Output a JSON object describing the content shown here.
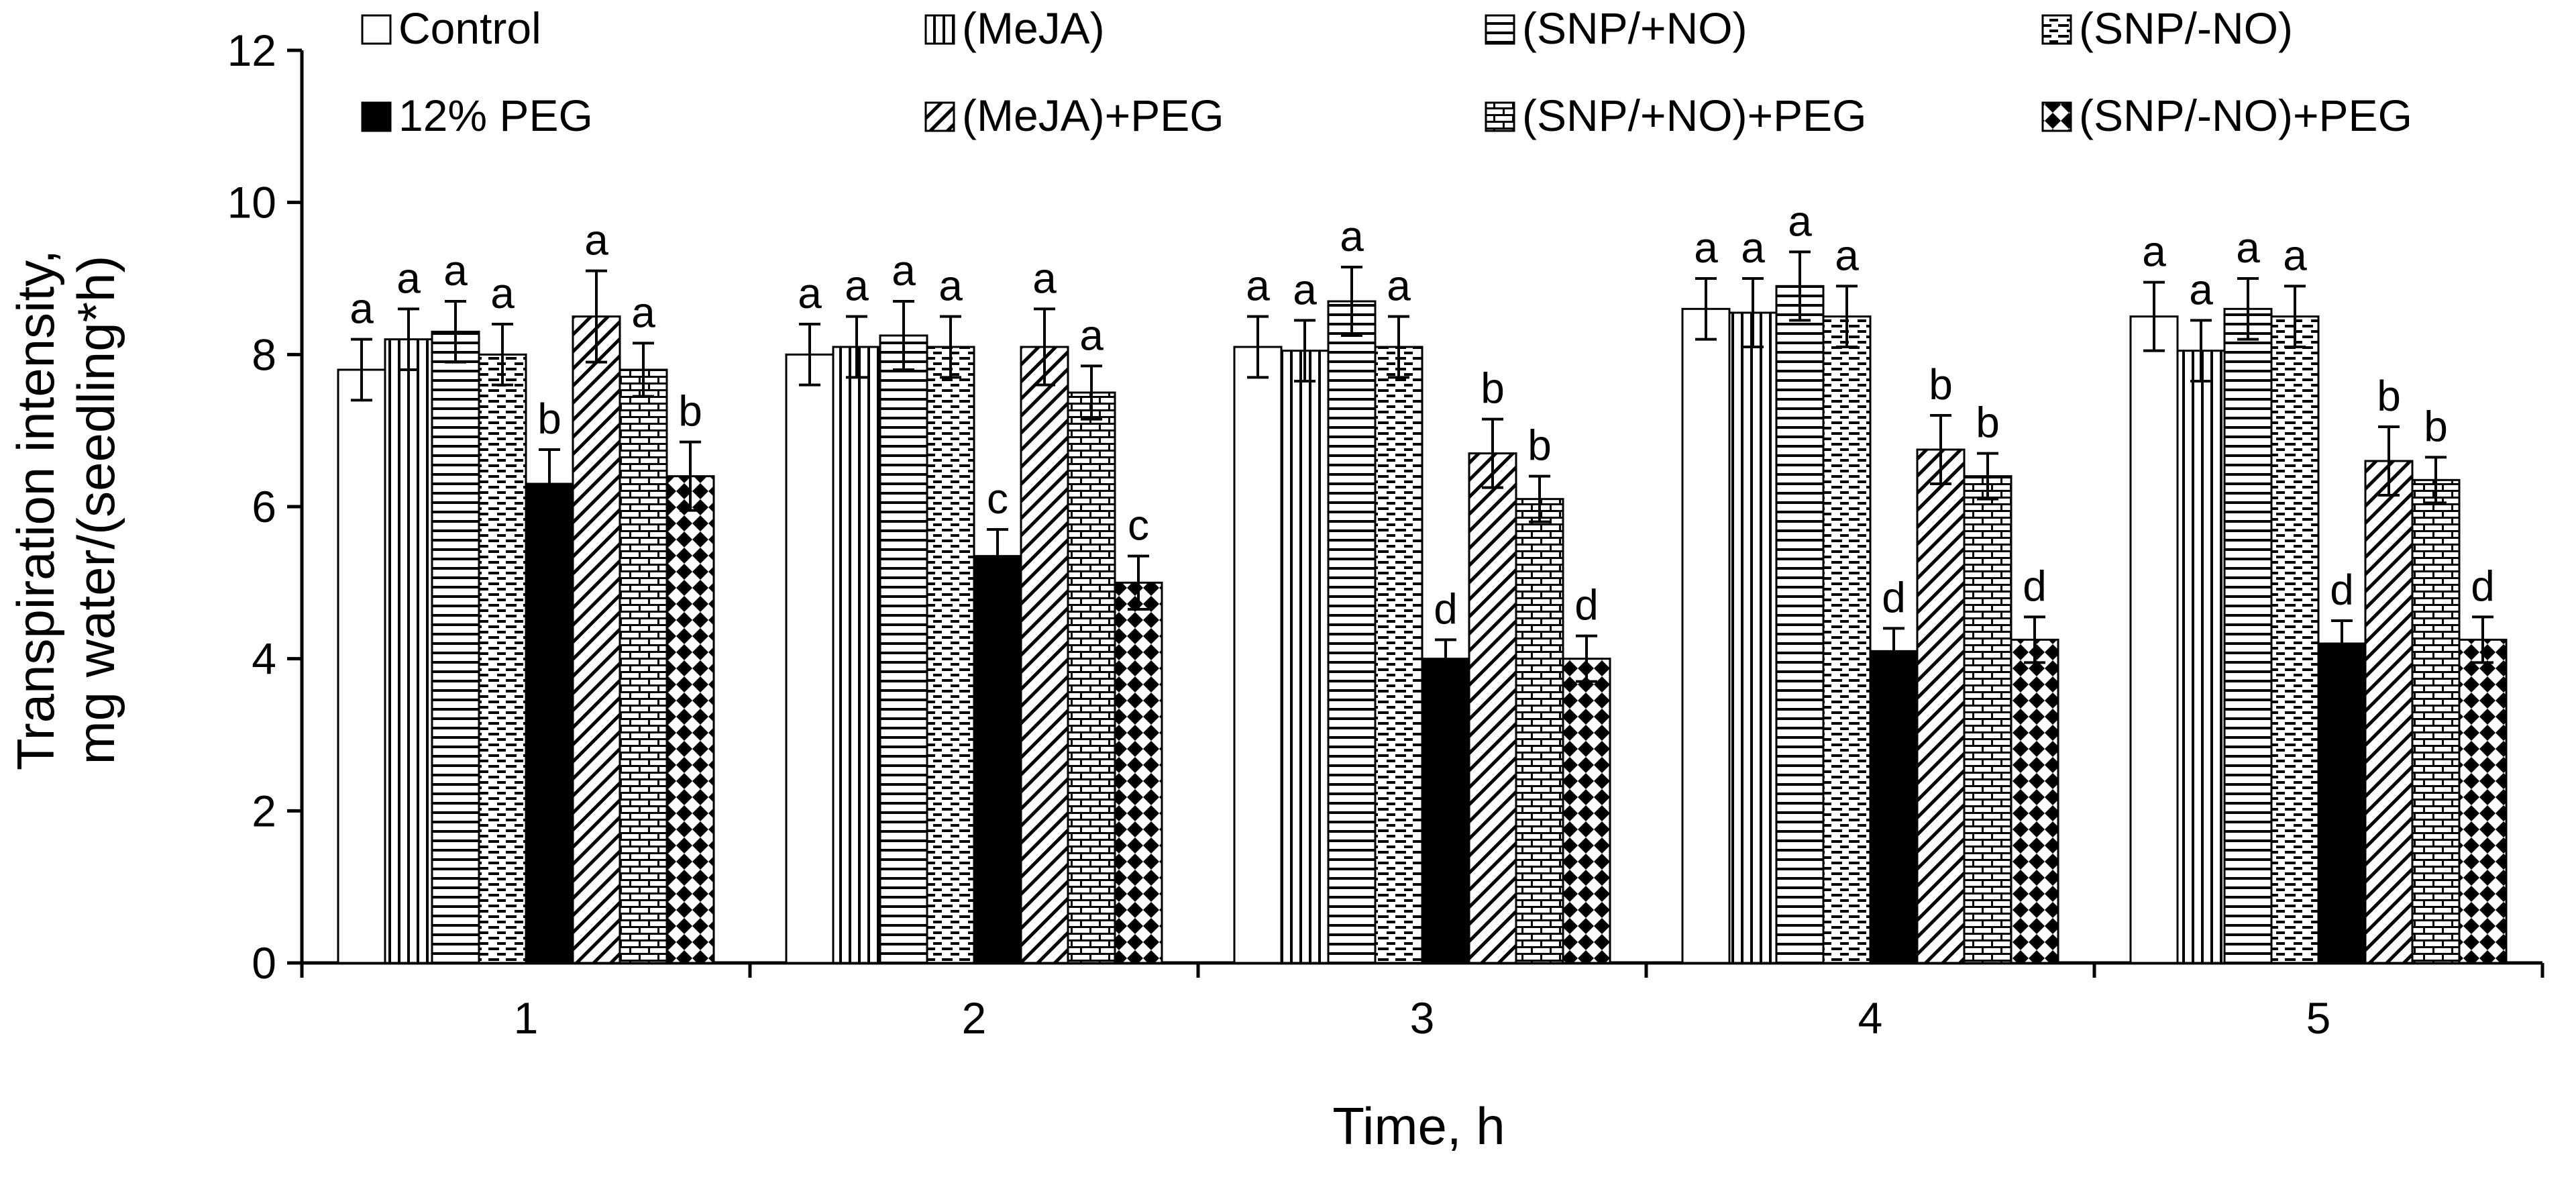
{
  "chart_data": {
    "type": "bar",
    "title": "",
    "xlabel": "Time, h",
    "ylabel_line1": "Transpiration intensity,",
    "ylabel_line2": "mg water/(seedling*h)",
    "ylim": [
      0,
      12
    ],
    "yticks": [
      "0",
      "2",
      "4",
      "6",
      "8",
      "10",
      "12"
    ],
    "categories": [
      "1",
      "2",
      "3",
      "4",
      "5"
    ],
    "grid": false,
    "legend_position": "top",
    "series": [
      {
        "name": "Control",
        "pattern": "white",
        "values": [
          7.8,
          8.0,
          8.1,
          8.6,
          8.5
        ],
        "errors": [
          0.4,
          0.4,
          0.4,
          0.4,
          0.45
        ],
        "labels": [
          "a",
          "a",
          "a",
          "a",
          "a"
        ]
      },
      {
        "name": "(MeJA)",
        "pattern": "vertical-lines",
        "values": [
          8.2,
          8.1,
          8.05,
          8.55,
          8.05
        ],
        "errors": [
          0.4,
          0.4,
          0.4,
          0.45,
          0.4
        ],
        "labels": [
          "a",
          "a",
          "a",
          "a",
          "a"
        ]
      },
      {
        "name": "(SNP/+NO)",
        "pattern": "horizontal-lines",
        "values": [
          8.3,
          8.25,
          8.7,
          8.9,
          8.6
        ],
        "errors": [
          0.4,
          0.45,
          0.45,
          0.45,
          0.4
        ],
        "labels": [
          "a",
          "a",
          "a",
          "a",
          "a"
        ]
      },
      {
        "name": "(SNP/-NO)",
        "pattern": "horizontal-dashes",
        "values": [
          8.0,
          8.1,
          8.1,
          8.5,
          8.5
        ],
        "errors": [
          0.4,
          0.4,
          0.4,
          0.4,
          0.4
        ],
        "labels": [
          "a",
          "a",
          "a",
          "a",
          "a"
        ]
      },
      {
        "name": "12% PEG",
        "pattern": "black",
        "values": [
          6.3,
          5.35,
          4.0,
          4.1,
          4.2
        ],
        "errors": [
          0.45,
          0.35,
          0.25,
          0.3,
          0.3
        ],
        "labels": [
          "b",
          "c",
          "d",
          "d",
          "d"
        ]
      },
      {
        "name": "(MeJA)+PEG",
        "pattern": "diagonal",
        "values": [
          8.5,
          8.1,
          6.7,
          6.75,
          6.6
        ],
        "errors": [
          0.6,
          0.5,
          0.45,
          0.45,
          0.45
        ],
        "labels": [
          "a",
          "a",
          "b",
          "b",
          "b"
        ]
      },
      {
        "name": "(SNP/+NO)+PEG",
        "pattern": "brick",
        "values": [
          7.8,
          7.5,
          6.1,
          6.4,
          6.35
        ],
        "errors": [
          0.35,
          0.35,
          0.3,
          0.3,
          0.3
        ],
        "labels": [
          "a",
          "a",
          "b",
          "b",
          "b"
        ]
      },
      {
        "name": "(SNP/-NO)+PEG",
        "pattern": "diamond",
        "values": [
          6.4,
          5.0,
          4.0,
          4.25,
          4.25
        ],
        "errors": [
          0.45,
          0.35,
          0.3,
          0.3,
          0.3
        ],
        "labels": [
          "b",
          "c",
          "d",
          "d",
          "d"
        ]
      }
    ]
  }
}
